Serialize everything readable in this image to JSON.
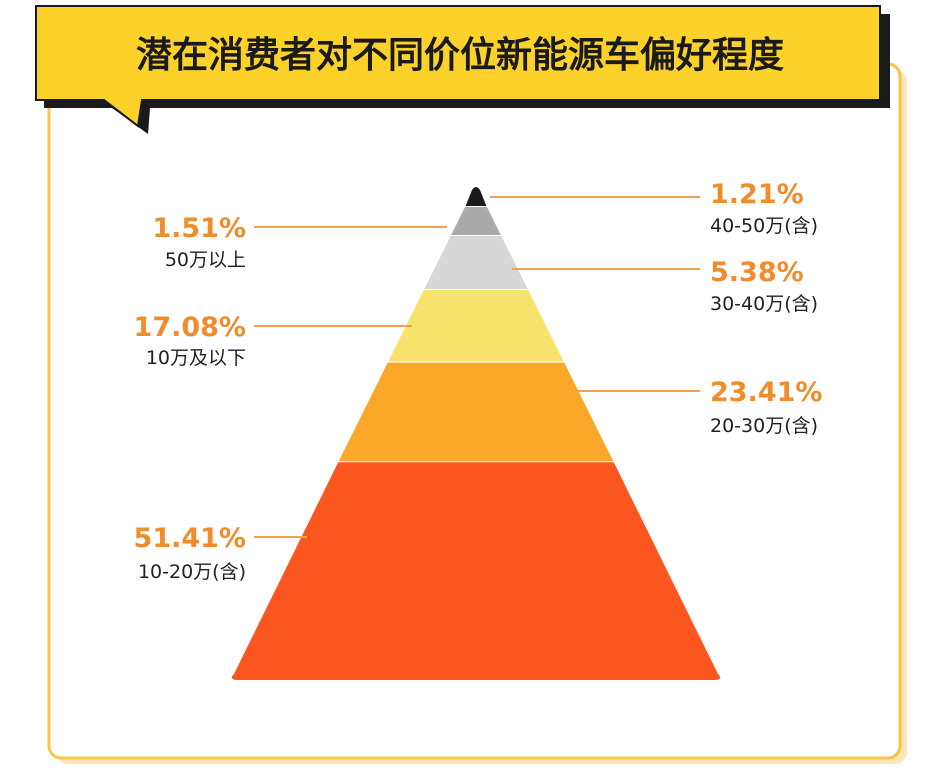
{
  "title": "潜在消费者对不同价位新能源车偏好程度",
  "chart_data": {
    "type": "pyramid",
    "title": "潜在消费者对不同价位新能源车偏好程度",
    "categories": [
      "10-20万(含)",
      "20-30万(含)",
      "10万及以下",
      "30-40万(含)",
      "50万以上",
      "40-50万(含)"
    ],
    "values": [
      51.41,
      23.41,
      17.08,
      5.38,
      1.51,
      1.21
    ],
    "labels": [
      "51.41%",
      "23.41%",
      "17.08%",
      "5.38%",
      "1.51%",
      "1.21%"
    ],
    "label_sides": [
      "left",
      "right",
      "left",
      "right",
      "left",
      "right"
    ],
    "colors": [
      "#fc5620",
      "#fba72a",
      "#f8e46c",
      "#d7d7d7",
      "#aaaaaa",
      "#1a1a1a"
    ],
    "legend": "none",
    "grid": false
  },
  "colors": {
    "banner": "#fcd22a",
    "frame": "#f9c548",
    "accent": "#f08c2a",
    "leader": "#f0a050"
  }
}
